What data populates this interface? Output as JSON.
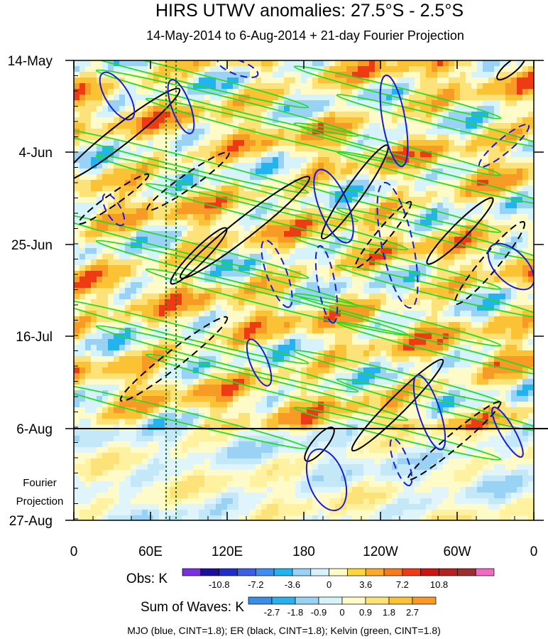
{
  "chart_data": {
    "type": "heatmap",
    "title": "HIRS UTWV anomalies: 27.5°S - 2.5°S",
    "subtitle": "14-May-2014 to 6-Aug-2014 + 21-day Fourier Projection",
    "x_axis": {
      "ticks": [
        "0",
        "60E",
        "120E",
        "180",
        "120W",
        "60W",
        "0"
      ],
      "range_deg_east": [
        0,
        360
      ]
    },
    "y_axis": {
      "ticks": [
        "14-May",
        "4-Jun",
        "25-Jun",
        "16-Jul",
        "6-Aug",
        "27-Aug"
      ],
      "direction": "time increasing downward"
    },
    "projection_label_lines": [
      "Fourier",
      "Projection"
    ],
    "obs_colorbar": {
      "label": "Obs: K",
      "tick_labels": [
        "-10.8",
        "-7.2",
        "-3.6",
        "0",
        "3.6",
        "7.2",
        "10.8"
      ],
      "colors": [
        "#7b2fe0",
        "#1c0f9c",
        "#1f2ec9",
        "#3a5ee6",
        "#3d8ef0",
        "#23b4f0",
        "#9ad2f5",
        "#d6f3fb",
        "#fffbc8",
        "#fcd63e",
        "#fbaa2b",
        "#f77a1d",
        "#ee3b13",
        "#cc1512",
        "#b42120",
        "#9e2d2d",
        "#f069c3"
      ]
    },
    "waves_colorbar": {
      "label": "Sum of Waves: K",
      "tick_labels": [
        "-2.7",
        "-1.8",
        "-0.9",
        "0",
        "0.9",
        "1.8",
        "2.7"
      ],
      "colors": [
        "#3a8ee8",
        "#2bb0ee",
        "#9ad2f5",
        "#d6f3fb",
        "#fffbc8",
        "#fde27a",
        "#fcc236",
        "#f89b26"
      ]
    },
    "footer": "MJO (blue, CINT=1.8); ER (black, CINT=1.8); Kelvin (green, CINT=1.8)",
    "contour_series": [
      {
        "name": "MJO",
        "color": "#1a1adb",
        "cint": 1.8
      },
      {
        "name": "ER",
        "color": "#000000",
        "cint": 1.8
      },
      {
        "name": "Kelvin",
        "color": "#22dd22",
        "cint": 1.8
      }
    ],
    "reference_longitudes_E": [
      72,
      80
    ]
  }
}
